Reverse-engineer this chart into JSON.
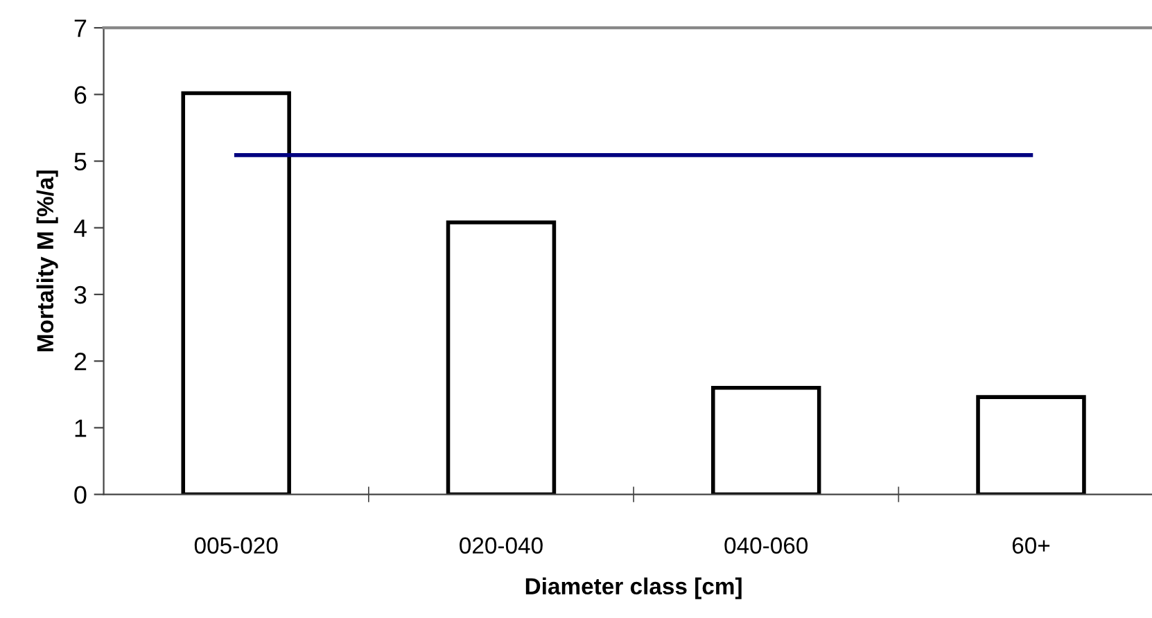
{
  "chart_data": {
    "type": "bar",
    "xlabel": "Diameter class [cm]",
    "ylabel": "Mortality M [%/a]",
    "categories": [
      "005-020",
      "020-040",
      "040-060",
      "60+"
    ],
    "series": [
      {
        "color": "#ffffff",
        "values": [
          6.02,
          4.08,
          1.6,
          1.46
        ]
      },
      {
        "type": "line",
        "color": "#000080",
        "values": [
          5.09,
          5.09,
          5.09,
          5.09
        ]
      }
    ],
    "ylim": [
      0,
      7
    ],
    "yticks": [
      0,
      1,
      2,
      3,
      4,
      5,
      6,
      7
    ],
    "grid": false,
    "legend": false,
    "marker": "none",
    "line_style": "solid"
  }
}
